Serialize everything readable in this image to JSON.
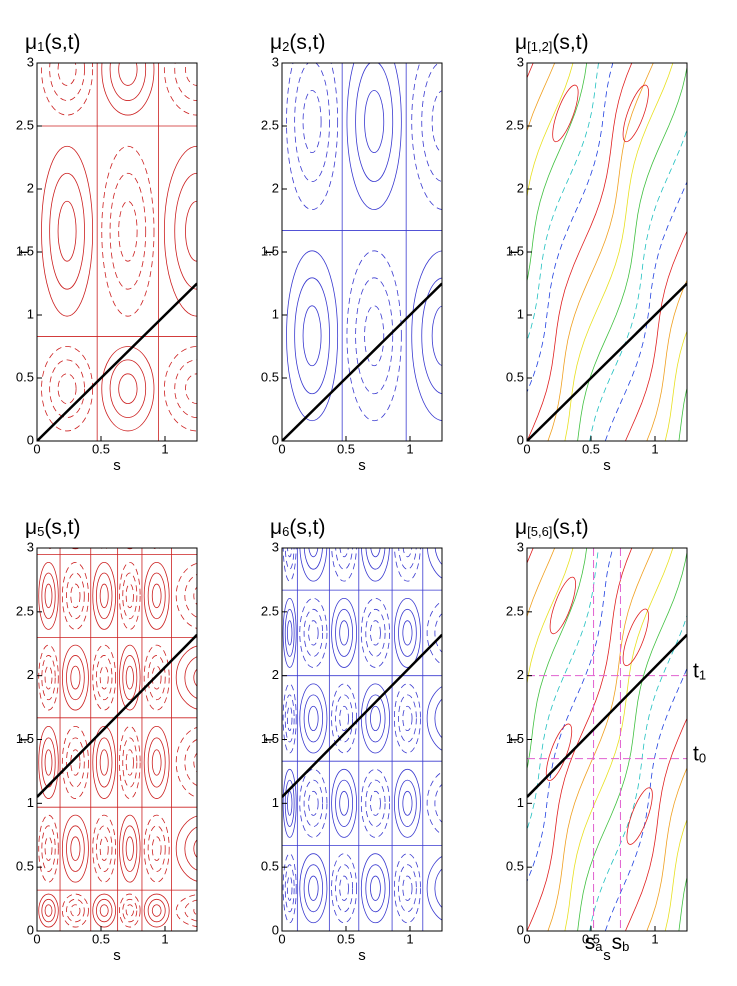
{
  "chart_data": [
    {
      "type": "contour",
      "title": {
        "base": "μ",
        "sub": "1",
        "rest": "(s,t)"
      },
      "xlabel": "s",
      "ylabel": "t",
      "xlim": [
        0,
        1.25
      ],
      "ylim": [
        0,
        3
      ],
      "xticks": [
        0,
        0.5,
        1
      ],
      "yticks": [
        0,
        0.5,
        1,
        1.5,
        2,
        2.5,
        3
      ],
      "contour_color": "#cc2020",
      "series": [
        {
          "color": "#000000",
          "x": [
            0,
            1.25
          ],
          "values": [
            0,
            1.25
          ]
        }
      ]
    },
    {
      "type": "contour",
      "title": {
        "base": "μ",
        "sub": "2",
        "rest": "(s,t)"
      },
      "xlabel": "s",
      "ylabel": "t",
      "xlim": [
        0,
        1.25
      ],
      "ylim": [
        0,
        3
      ],
      "xticks": [
        0,
        0.5,
        1
      ],
      "yticks": [
        0,
        0.5,
        1,
        1.5,
        2,
        2.5,
        3
      ],
      "contour_color": "#3a3ad0",
      "series": [
        {
          "color": "#000000",
          "x": [
            0,
            1.25
          ],
          "values": [
            0,
            1.25
          ]
        }
      ]
    },
    {
      "type": "contour-mixed",
      "title": {
        "base": "μ",
        "sub": "[1,2]",
        "rest": "(s,t)"
      },
      "xlabel": "s",
      "ylabel": "t",
      "xlim": [
        0,
        1.25
      ],
      "ylim": [
        0,
        3
      ],
      "xticks": [
        0,
        0.5,
        1
      ],
      "yticks": [
        0,
        0.5,
        1,
        1.5,
        2,
        2.5,
        3
      ],
      "series": [
        {
          "color": "#000000",
          "x": [
            0,
            1.25
          ],
          "values": [
            0,
            1.25
          ]
        }
      ]
    },
    {
      "type": "contour",
      "title": {
        "base": "μ",
        "sub": "5",
        "rest": "(s,t)"
      },
      "xlabel": "s",
      "ylabel": "t",
      "xlim": [
        0,
        1.25
      ],
      "ylim": [
        0,
        3
      ],
      "xticks": [
        0,
        0.5,
        1
      ],
      "yticks": [
        0,
        0.5,
        1,
        1.5,
        2,
        2.5,
        3
      ],
      "contour_color": "#cc2020",
      "series": [
        {
          "color": "#000000",
          "x": [
            0,
            1.25
          ],
          "values": [
            1.05,
            2.32
          ]
        }
      ]
    },
    {
      "type": "contour",
      "title": {
        "base": "μ",
        "sub": "6",
        "rest": "(s,t)"
      },
      "xlabel": "s",
      "ylabel": "t",
      "xlim": [
        0,
        1.25
      ],
      "ylim": [
        0,
        3
      ],
      "xticks": [
        0,
        0.5,
        1
      ],
      "yticks": [
        0,
        0.5,
        1,
        1.5,
        2,
        2.5,
        3
      ],
      "contour_color": "#3a3ad0",
      "series": [
        {
          "color": "#000000",
          "x": [
            0,
            1.25
          ],
          "values": [
            1.05,
            2.32
          ]
        }
      ]
    },
    {
      "type": "contour-mixed",
      "title": {
        "base": "μ",
        "sub": "[5,6]",
        "rest": "(s,t)"
      },
      "xlabel": "s",
      "ylabel": "t",
      "xlim": [
        0,
        1.25
      ],
      "ylim": [
        0,
        3
      ],
      "xticks": [
        0,
        0.5,
        1
      ],
      "yticks": [
        0,
        0.5,
        1,
        1.5,
        2,
        2.5,
        3
      ],
      "series": [
        {
          "color": "#000000",
          "x": [
            0,
            1.25
          ],
          "values": [
            1.05,
            2.32
          ]
        }
      ],
      "annotations": [
        {
          "axis": "y",
          "value": 2.0,
          "text": {
            "base": "t",
            "sub": "1"
          },
          "color": "#e060d0"
        },
        {
          "axis": "y",
          "value": 1.35,
          "text": {
            "base": "t",
            "sub": "0"
          },
          "color": "#e060d0"
        },
        {
          "axis": "x",
          "value": 0.52,
          "text": {
            "base": "s",
            "sub": "a"
          },
          "color": "#e060d0"
        },
        {
          "axis": "x",
          "value": 0.73,
          "text": {
            "base": "s",
            "sub": "b"
          },
          "color": "#e060d0"
        }
      ]
    }
  ]
}
